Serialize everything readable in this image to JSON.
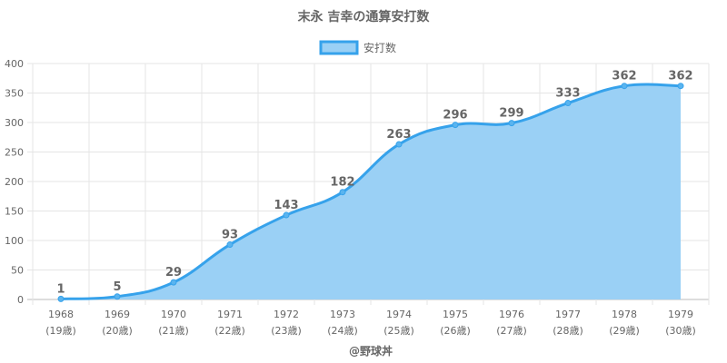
{
  "chart_data": {
    "type": "area",
    "title": "末永 吉幸の通算安打数",
    "legend": {
      "label": "安打数",
      "placement": "top"
    },
    "categories": [
      "1968",
      "1969",
      "1970",
      "1971",
      "1972",
      "1973",
      "1974",
      "1975",
      "1976",
      "1977",
      "1978",
      "1979"
    ],
    "sublabels": [
      "(19歳)",
      "(20歳)",
      "(21歳)",
      "(22歳)",
      "(23歳)",
      "(24歳)",
      "(25歳)",
      "(26歳)",
      "(27歳)",
      "(28歳)",
      "(29歳)",
      "(30歳)"
    ],
    "series": [
      {
        "name": "安打数",
        "values": [
          1,
          5,
          29,
          93,
          143,
          182,
          263,
          296,
          299,
          333,
          362,
          362
        ]
      }
    ],
    "ylim": [
      0,
      400
    ],
    "yticks": [
      0,
      50,
      100,
      150,
      200,
      250,
      300,
      350,
      400
    ],
    "grid": true,
    "colors": {
      "line": "#36a2eb",
      "fill": "#9ad0f5"
    },
    "credit": "@野球丼"
  }
}
